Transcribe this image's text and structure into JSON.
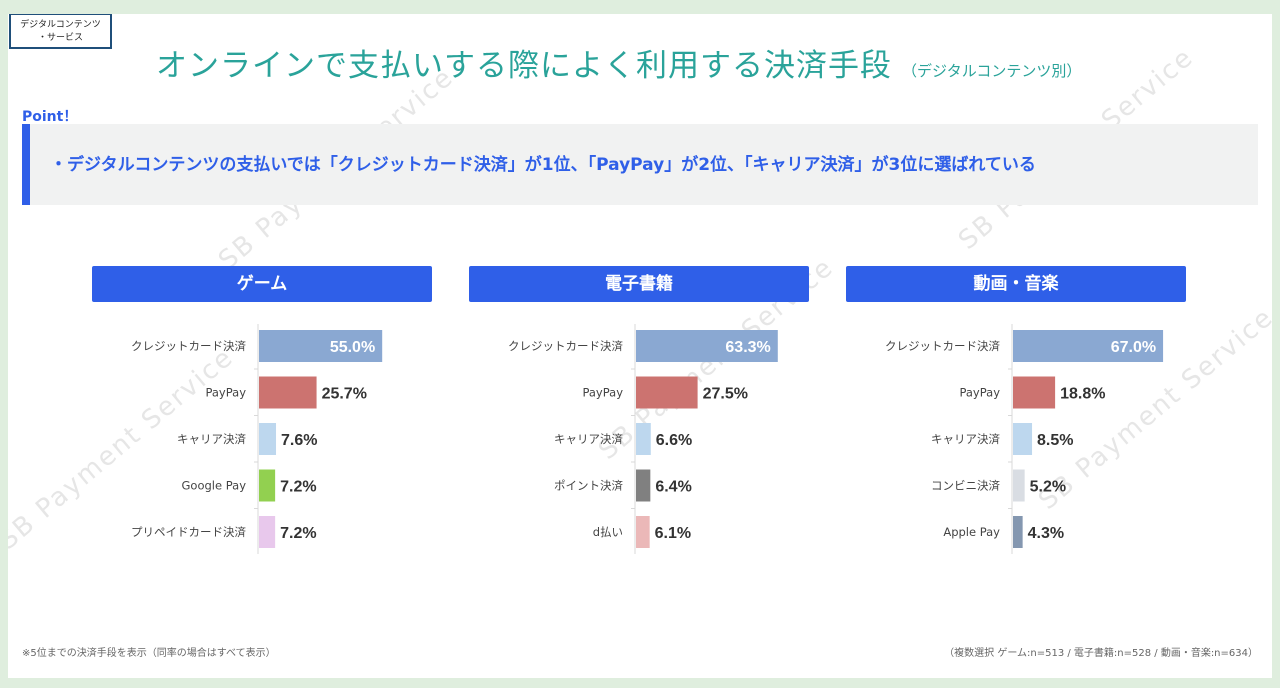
{
  "corner_tag": {
    "line1": "デジタルコンテンツ",
    "line2": "・サービス"
  },
  "title": {
    "main": "オンラインで支払いする際によく利用する決済手段",
    "sub": "（デジタルコンテンツ別）"
  },
  "point": {
    "label": "Point！",
    "text": "・デジタルコンテンツの支払いでは「クレジットカード決済」が1位、「PayPay」が2位、「キャリア決済」が3位に選ばれている"
  },
  "footnote_left": "※5位までの決済手段を表示（同率の場合はすべて表示）",
  "footnote_right": "（複数選択 ゲーム:n=513 / 電子書籍:n=528 / 動画・音楽:n=634）",
  "watermark": "SB Payment Service",
  "chart_data": [
    {
      "type": "bar",
      "title": "ゲーム",
      "categories": [
        "クレジットカード決済",
        "PayPay",
        "キャリア決済",
        "Google Pay",
        "プリペイドカード決済"
      ],
      "values": [
        55.0,
        25.7,
        7.6,
        7.2,
        7.2
      ],
      "labels": [
        "55.0%",
        "25.7%",
        "7.6%",
        "7.2%",
        "7.2%"
      ],
      "colors": [
        "#8aa8d2",
        "#cc7370",
        "#bdd7ee",
        "#92d050",
        "#e8c8ec"
      ],
      "xlim": [
        0,
        100
      ]
    },
    {
      "type": "bar",
      "title": "電子書籍",
      "categories": [
        "クレジットカード決済",
        "PayPay",
        "キャリア決済",
        "ポイント決済",
        "d払い"
      ],
      "values": [
        63.3,
        27.5,
        6.6,
        6.4,
        6.1
      ],
      "labels": [
        "63.3%",
        "27.5%",
        "6.6%",
        "6.4%",
        "6.1%"
      ],
      "colors": [
        "#8aa8d2",
        "#cc7370",
        "#bdd7ee",
        "#808080",
        "#ebb8b8"
      ],
      "xlim": [
        0,
        100
      ]
    },
    {
      "type": "bar",
      "title": "動画・音楽",
      "categories": [
        "クレジットカード決済",
        "PayPay",
        "キャリア決済",
        "コンビニ決済",
        "Apple Pay"
      ],
      "values": [
        67.0,
        18.8,
        8.5,
        5.2,
        4.3
      ],
      "labels": [
        "67.0%",
        "18.8%",
        "8.5%",
        "5.2%",
        "4.3%"
      ],
      "colors": [
        "#8aa8d2",
        "#cc7370",
        "#bdd7ee",
        "#d9dde3",
        "#8497b0"
      ],
      "xlim": [
        0,
        100
      ]
    }
  ]
}
